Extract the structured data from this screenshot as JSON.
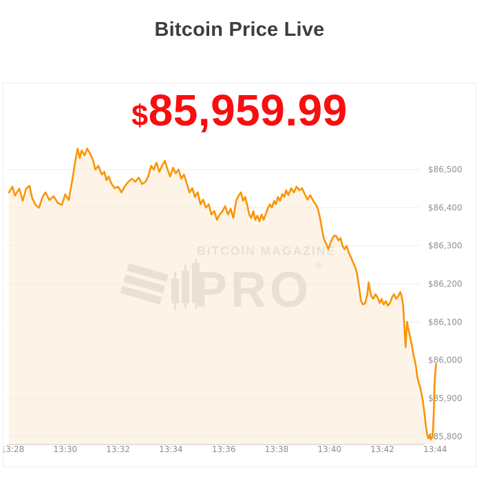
{
  "header": {
    "title": "Bitcoin Price Live"
  },
  "price": {
    "currency": "$",
    "amount": "85,959.99",
    "full": "$85,959.99",
    "color": "#f90d0f"
  },
  "watermark": {
    "line1": "BITCOIN MAGAZINE",
    "line2": "PRO",
    "registered": "®",
    "color": "#e9e1d4",
    "logo_icon": "bitcoin-magazine-pro-logo"
  },
  "chart_data": {
    "type": "area",
    "title": "Bitcoin Price Live",
    "xlabel": "",
    "ylabel": "",
    "x_unit": "time of day (HH:MM)",
    "y_unit": "USD",
    "x_ticks": [
      "13:28",
      "13:30",
      "13:32",
      "13:34",
      "13:36",
      "13:38",
      "13:40",
      "13:42",
      "13:44"
    ],
    "x_tick_minutes": [
      0,
      2,
      4,
      6,
      8,
      10,
      12,
      14,
      16
    ],
    "y_ticks": [
      "$86,500",
      "$86,400",
      "$86,300",
      "$86,200",
      "$86,100",
      "$86,000",
      "$85,900",
      "$85,800"
    ],
    "y_tick_values": [
      86500,
      86400,
      86300,
      86200,
      86100,
      86000,
      85900,
      85800
    ],
    "ylim": [
      85760,
      86600
    ],
    "xlim_minutes": [
      -0.2,
      16.1
    ],
    "grid": true,
    "legend": false,
    "line_color": "#f99405",
    "fill_color": "#fdf4e7",
    "grid_color": "#f0ede6",
    "axis_line_color": "#d8cfc3",
    "tick_label_color": "#8c9097",
    "points": [
      [
        -0.13,
        86440
      ],
      [
        0,
        86455
      ],
      [
        0.1,
        86432
      ],
      [
        0.26,
        86450
      ],
      [
        0.39,
        86418
      ],
      [
        0.52,
        86450
      ],
      [
        0.65,
        86457
      ],
      [
        0.75,
        86425
      ],
      [
        0.88,
        86407
      ],
      [
        1.01,
        86400
      ],
      [
        1.14,
        86428
      ],
      [
        1.25,
        86440
      ],
      [
        1.4,
        86420
      ],
      [
        1.56,
        86430
      ],
      [
        1.71,
        86413
      ],
      [
        1.87,
        86407
      ],
      [
        2,
        86435
      ],
      [
        2.13,
        86420
      ],
      [
        2.26,
        86470
      ],
      [
        2.39,
        86527
      ],
      [
        2.47,
        86555
      ],
      [
        2.55,
        86530
      ],
      [
        2.62,
        86550
      ],
      [
        2.73,
        86537
      ],
      [
        2.83,
        86555
      ],
      [
        2.94,
        86542
      ],
      [
        3.04,
        86527
      ],
      [
        3.14,
        86500
      ],
      [
        3.25,
        86510
      ],
      [
        3.38,
        86487
      ],
      [
        3.48,
        86494
      ],
      [
        3.56,
        86472
      ],
      [
        3.64,
        86482
      ],
      [
        3.74,
        86464
      ],
      [
        3.87,
        86451
      ],
      [
        4,
        86455
      ],
      [
        4.13,
        86440
      ],
      [
        4.26,
        86457
      ],
      [
        4.39,
        86468
      ],
      [
        4.52,
        86476
      ],
      [
        4.65,
        86468
      ],
      [
        4.78,
        86479
      ],
      [
        4.91,
        86462
      ],
      [
        5.04,
        86468
      ],
      [
        5.14,
        86482
      ],
      [
        5.25,
        86510
      ],
      [
        5.35,
        86500
      ],
      [
        5.45,
        86518
      ],
      [
        5.56,
        86494
      ],
      [
        5.66,
        86510
      ],
      [
        5.77,
        86523
      ],
      [
        5.87,
        86500
      ],
      [
        5.97,
        86482
      ],
      [
        6.08,
        86505
      ],
      [
        6.18,
        86490
      ],
      [
        6.29,
        86500
      ],
      [
        6.39,
        86476
      ],
      [
        6.49,
        86487
      ],
      [
        6.6,
        86464
      ],
      [
        6.7,
        86440
      ],
      [
        6.81,
        86451
      ],
      [
        6.91,
        86428
      ],
      [
        7.01,
        86440
      ],
      [
        7.12,
        86409
      ],
      [
        7.22,
        86421
      ],
      [
        7.32,
        86400
      ],
      [
        7.43,
        86409
      ],
      [
        7.53,
        86382
      ],
      [
        7.64,
        86391
      ],
      [
        7.74,
        86368
      ],
      [
        7.84,
        86382
      ],
      [
        7.95,
        86391
      ],
      [
        8.05,
        86404
      ],
      [
        8.16,
        86382
      ],
      [
        8.26,
        86397
      ],
      [
        8.36,
        86373
      ],
      [
        8.47,
        86418
      ],
      [
        8.57,
        86433
      ],
      [
        8.65,
        86440
      ],
      [
        8.73,
        86418
      ],
      [
        8.81,
        86428
      ],
      [
        8.88,
        86409
      ],
      [
        8.96,
        86382
      ],
      [
        9.04,
        86373
      ],
      [
        9.12,
        86391
      ],
      [
        9.19,
        86368
      ],
      [
        9.27,
        86379
      ],
      [
        9.35,
        86364
      ],
      [
        9.43,
        86382
      ],
      [
        9.51,
        86368
      ],
      [
        9.58,
        86382
      ],
      [
        9.66,
        86397
      ],
      [
        9.74,
        86409
      ],
      [
        9.82,
        86400
      ],
      [
        9.9,
        86418
      ],
      [
        9.97,
        86409
      ],
      [
        10.05,
        86428
      ],
      [
        10.13,
        86418
      ],
      [
        10.21,
        86436
      ],
      [
        10.29,
        86428
      ],
      [
        10.36,
        86446
      ],
      [
        10.44,
        86433
      ],
      [
        10.55,
        86451
      ],
      [
        10.65,
        86440
      ],
      [
        10.75,
        86455
      ],
      [
        10.86,
        86446
      ],
      [
        10.96,
        86451
      ],
      [
        11.06,
        86436
      ],
      [
        11.17,
        86421
      ],
      [
        11.27,
        86433
      ],
      [
        11.38,
        86418
      ],
      [
        11.48,
        86409
      ],
      [
        11.56,
        86397
      ],
      [
        11.64,
        86373
      ],
      [
        11.71,
        86345
      ],
      [
        11.79,
        86318
      ],
      [
        11.87,
        86306
      ],
      [
        11.95,
        86291
      ],
      [
        12.03,
        86306
      ],
      [
        12.1,
        86318
      ],
      [
        12.18,
        86327
      ],
      [
        12.26,
        86325
      ],
      [
        12.34,
        86314
      ],
      [
        12.42,
        86320
      ],
      [
        12.49,
        86300
      ],
      [
        12.57,
        86291
      ],
      [
        12.65,
        86300
      ],
      [
        12.73,
        86282
      ],
      [
        12.81,
        86270
      ],
      [
        12.88,
        86258
      ],
      [
        12.96,
        86246
      ],
      [
        13.04,
        86228
      ],
      [
        13.12,
        86191
      ],
      [
        13.19,
        86155
      ],
      [
        13.27,
        86146
      ],
      [
        13.35,
        86150
      ],
      [
        13.43,
        86173
      ],
      [
        13.48,
        86204
      ],
      [
        13.53,
        86182
      ],
      [
        13.58,
        86168
      ],
      [
        13.66,
        86161
      ],
      [
        13.74,
        86173
      ],
      [
        13.82,
        86164
      ],
      [
        13.9,
        86150
      ],
      [
        13.97,
        86161
      ],
      [
        14.05,
        86146
      ],
      [
        14.13,
        86155
      ],
      [
        14.21,
        86143
      ],
      [
        14.29,
        86150
      ],
      [
        14.36,
        86164
      ],
      [
        14.44,
        86173
      ],
      [
        14.52,
        86161
      ],
      [
        14.6,
        86168
      ],
      [
        14.68,
        86179
      ],
      [
        14.73,
        86168
      ],
      [
        14.78,
        86146
      ],
      [
        14.83,
        86092
      ],
      [
        14.86,
        86056
      ],
      [
        14.88,
        86034
      ],
      [
        14.91,
        86074
      ],
      [
        14.94,
        86101
      ],
      [
        14.96,
        86088
      ],
      [
        15.01,
        86074
      ],
      [
        15.06,
        86056
      ],
      [
        15.12,
        86038
      ],
      [
        15.17,
        86016
      ],
      [
        15.22,
        86002
      ],
      [
        15.27,
        85984
      ],
      [
        15.32,
        85957
      ],
      [
        15.38,
        85939
      ],
      [
        15.43,
        85930
      ],
      [
        15.48,
        85912
      ],
      [
        15.53,
        85894
      ],
      [
        15.58,
        85867
      ],
      [
        15.64,
        85831
      ],
      [
        15.69,
        85807
      ],
      [
        15.74,
        85795
      ],
      [
        15.79,
        85804
      ],
      [
        15.84,
        85793
      ],
      [
        15.9,
        85800
      ],
      [
        15.92,
        85822
      ],
      [
        15.95,
        85876
      ],
      [
        15.97,
        85930
      ],
      [
        16,
        85966
      ],
      [
        16.03,
        85990
      ]
    ]
  }
}
